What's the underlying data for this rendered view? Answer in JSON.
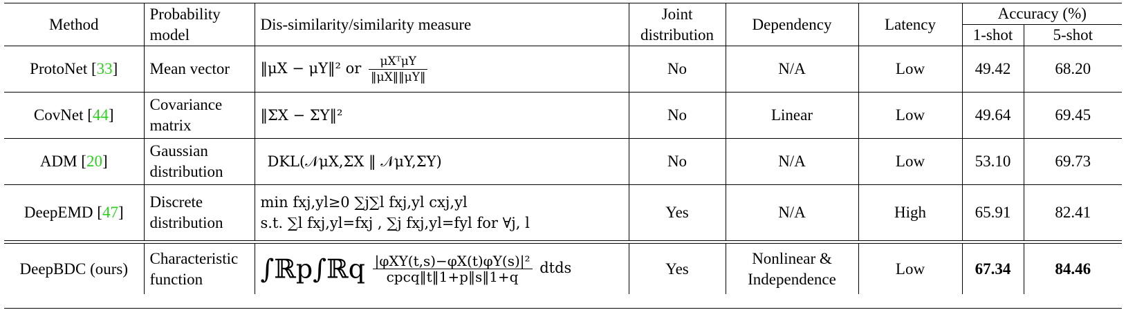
{
  "headers": {
    "method": "Method",
    "probability_model": "Probability model",
    "measure": "Dis-similarity/similarity measure",
    "joint": "Joint distribution",
    "dependency": "Dependency",
    "latency": "Latency",
    "accuracy": "Accuracy (%)",
    "one_shot": "1-shot",
    "five_shot": "5-shot"
  },
  "rows": [
    {
      "method": "ProtoNet [",
      "ref": "33",
      "close": "]",
      "model": "Mean vector",
      "joint": "No",
      "dependency": "N/A",
      "latency": "Low",
      "one_shot": "49.42",
      "five_shot": "68.20"
    },
    {
      "method": "CovNet [",
      "ref": "44",
      "close": "]",
      "model": "Covariance matrix",
      "joint": "No",
      "dependency": "Linear",
      "latency": "Low",
      "one_shot": "49.64",
      "five_shot": "69.45"
    },
    {
      "method": "ADM [",
      "ref": "20",
      "close": "]",
      "model": "Gaussian distribution",
      "joint": "No",
      "dependency": "N/A",
      "latency": "Low",
      "one_shot": "53.10",
      "five_shot": "69.73"
    },
    {
      "method": "DeepEMD [",
      "ref": "47",
      "close": "]",
      "model": "Discrete distribution",
      "joint": "Yes",
      "dependency": "N/A",
      "latency": "High",
      "one_shot": "65.91",
      "five_shot": "82.41"
    },
    {
      "method": "DeepBDC (ours)",
      "model": "Characteristic function",
      "joint": "Yes",
      "dependency": "Nonlinear & Independence",
      "latency": "Low",
      "one_shot": "67.34",
      "five_shot": "84.46"
    }
  ],
  "formulas": {
    "protonet_a": "‖μX − μY‖² or",
    "protonet_num": "μXᵀμY",
    "protonet_den": "‖μX‖‖μY‖",
    "covnet": "‖ΣX − ΣY‖²",
    "adm": "DKL(𝒩μX,ΣX ‖ 𝒩μY,ΣY)",
    "deepemd_1": "min fxj,yl≥0 ∑j∑l fxj,yl cxj,yl",
    "deepemd_2": "s.t. ∑l fxj,yl=fxj , ∑j fxj,yl=fyl for ∀j, l",
    "deepbdc_num": "|φXY(t,s)−φX(t)φY(s)|²",
    "deepbdc_den": "cpcq‖t‖1+p‖s‖1+q",
    "deepbdc_int": "∫ℝp∫ℝq",
    "deepbdc_tail": "dtds"
  }
}
